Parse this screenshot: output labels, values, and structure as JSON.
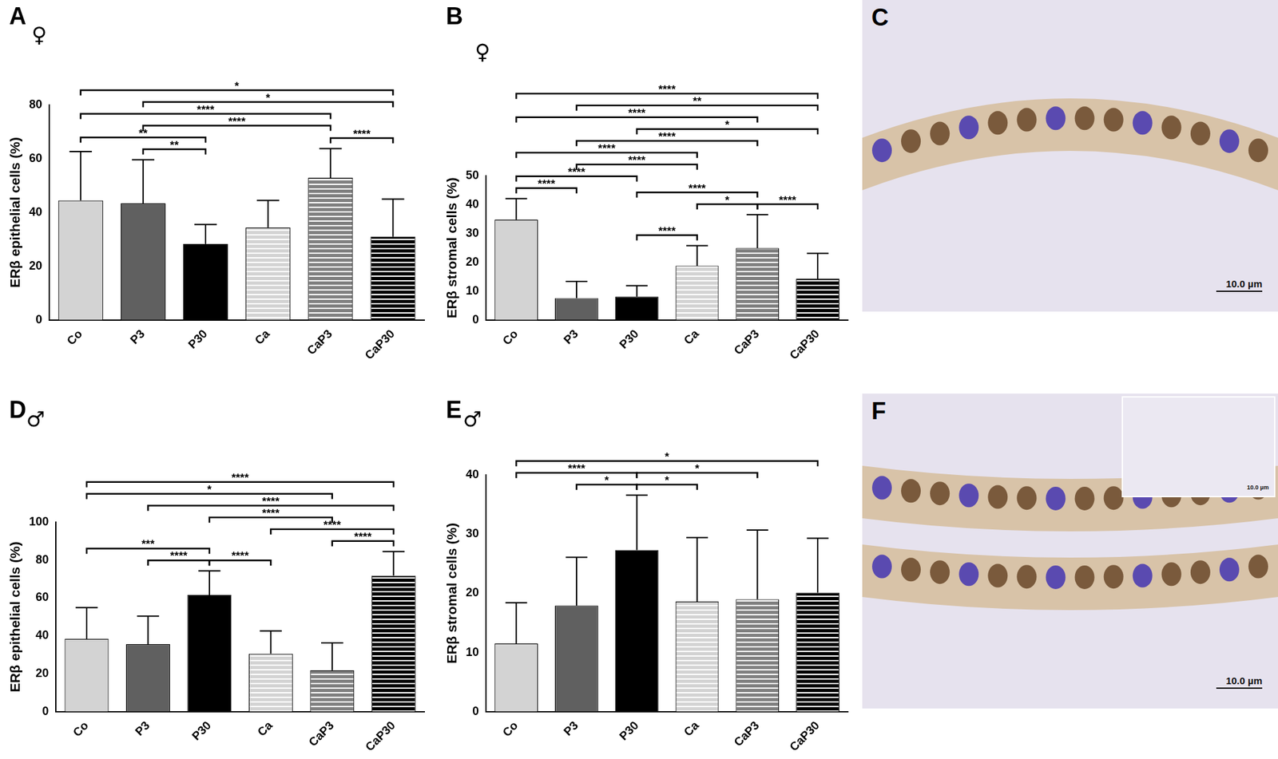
{
  "chart_data": [
    {
      "type": "bar",
      "panel": "A",
      "symbol": "♀",
      "y_label": "ERβ epithelial cells (%)",
      "categories": [
        "Co",
        "P3",
        "P30",
        "Ca",
        "CaP3",
        "CaP30"
      ],
      "values": [
        44.5,
        43.4,
        28.3,
        34.4,
        52.9,
        31.0
      ],
      "errors": [
        18.2,
        16.2,
        7.2,
        10.1,
        10.9,
        14.0
      ],
      "colors": [
        "#d3d3d3",
        "#606060",
        "#000000",
        "#d3d3d3",
        "#808080",
        "#000000"
      ],
      "ylim": [
        0,
        80
      ],
      "yticks": [
        0,
        20,
        40,
        60,
        80
      ],
      "grid": false,
      "significance": [
        {
          "from": "Co",
          "to": "CaP30",
          "label": "*"
        },
        {
          "from": "Co",
          "to": "CaP3",
          "label": "****"
        },
        {
          "from": "Co",
          "to": "P30",
          "label": "**"
        },
        {
          "from": "P3",
          "to": "CaP30",
          "label": "*"
        },
        {
          "from": "P3",
          "to": "CaP3",
          "label": "****"
        },
        {
          "from": "P3",
          "to": "P30",
          "label": "**"
        },
        {
          "from": "CaP3",
          "to": "CaP30",
          "label": "****"
        }
      ]
    },
    {
      "type": "bar",
      "panel": "B",
      "symbol": "♀",
      "y_label": "ERβ stromal cells (%)",
      "categories": [
        "Co",
        "P3",
        "P30",
        "Ca",
        "CaP3",
        "CaP30"
      ],
      "values": [
        34.8,
        7.6,
        8.1,
        18.8,
        24.9,
        14.3
      ],
      "errors": [
        7.3,
        5.8,
        3.8,
        7.0,
        11.6,
        8.8
      ],
      "colors": [
        "#d3d3d3",
        "#606060",
        "#000000",
        "#d3d3d3",
        "#808080",
        "#000000"
      ],
      "ylim": [
        0,
        50
      ],
      "yticks": [
        0,
        10,
        20,
        30,
        40,
        50
      ],
      "grid": false,
      "significance": [
        {
          "from": "Co",
          "to": "CaP30",
          "label": "****"
        },
        {
          "from": "Co",
          "to": "CaP3",
          "label": "****"
        },
        {
          "from": "Co",
          "to": "Ca",
          "label": "****"
        },
        {
          "from": "P3",
          "to": "CaP3",
          "label": "****"
        },
        {
          "from": "Co",
          "to": "P30",
          "label": "****"
        },
        {
          "from": "P30",
          "to": "CaP3",
          "label": "****"
        },
        {
          "from": "P3",
          "to": "CaP30",
          "label": "**"
        },
        {
          "from": "Co",
          "to": "P3",
          "label": "****"
        },
        {
          "from": "P30",
          "to": "CaP30",
          "label": "*"
        },
        {
          "from": "Ca",
          "to": "CaP3",
          "label": "*"
        },
        {
          "from": "CaP3",
          "to": "CaP30",
          "label": "****"
        },
        {
          "from": "P3",
          "to": "Ca",
          "label": "****"
        },
        {
          "from": "P30",
          "to": "Ca",
          "label": "****"
        }
      ]
    },
    {
      "type": "bar",
      "panel": "D",
      "symbol": "♂",
      "y_label": "ERβ epithelial cells (%)",
      "categories": [
        "Co",
        "P3",
        "P30",
        "Ca",
        "CaP3",
        "CaP30"
      ],
      "values": [
        38.4,
        35.6,
        61.6,
        30.6,
        21.8,
        71.8
      ],
      "errors": [
        16.5,
        14.8,
        12.7,
        12.0,
        14.5,
        12.7
      ],
      "colors": [
        "#d3d3d3",
        "#606060",
        "#000000",
        "#d3d3d3",
        "#808080",
        "#000000"
      ],
      "ylim": [
        0,
        100
      ],
      "yticks": [
        0,
        20,
        40,
        60,
        80,
        100
      ],
      "grid": false,
      "significance": [
        {
          "from": "Co",
          "to": "CaP30",
          "label": "****"
        },
        {
          "from": "P3",
          "to": "CaP30",
          "label": "****"
        },
        {
          "from": "Ca",
          "to": "CaP30",
          "label": "****"
        },
        {
          "from": "Co",
          "to": "CaP3",
          "label": "*"
        },
        {
          "from": "Co",
          "to": "P30",
          "label": "***"
        },
        {
          "from": "P30",
          "to": "CaP3",
          "label": "****"
        },
        {
          "from": "CaP3",
          "to": "CaP30",
          "label": "****"
        },
        {
          "from": "P3",
          "to": "P30",
          "label": "****"
        },
        {
          "from": "P30",
          "to": "Ca",
          "label": "****"
        }
      ]
    },
    {
      "type": "bar",
      "panel": "E",
      "symbol": "♂",
      "y_label": "ERβ stromal cells (%)",
      "categories": [
        "Co",
        "P3",
        "P30",
        "Ca",
        "CaP3",
        "CaP30"
      ],
      "values": [
        11.5,
        17.9,
        27.3,
        18.6,
        19.0,
        20.1
      ],
      "errors": [
        6.9,
        8.2,
        9.3,
        10.8,
        11.7,
        9.2
      ],
      "colors": [
        "#d3d3d3",
        "#606060",
        "#000000",
        "#d3d3d3",
        "#808080",
        "#000000"
      ],
      "ylim": [
        0,
        40
      ],
      "yticks": [
        0,
        10,
        20,
        30,
        40
      ],
      "grid": false,
      "significance": [
        {
          "from": "Co",
          "to": "CaP30",
          "label": "*"
        },
        {
          "from": "Co",
          "to": "P30",
          "label": "****"
        },
        {
          "from": "P30",
          "to": "CaP3",
          "label": "*"
        },
        {
          "from": "P3",
          "to": "P30",
          "label": "*"
        },
        {
          "from": "P30",
          "to": "Ca",
          "label": "*"
        }
      ]
    }
  ],
  "images": [
    {
      "panel": "C",
      "scale_bar": "10.0 µm"
    },
    {
      "panel": "F",
      "scale_bar": "10.0 µm",
      "inset_scale_bar": "10.0 µm"
    }
  ]
}
